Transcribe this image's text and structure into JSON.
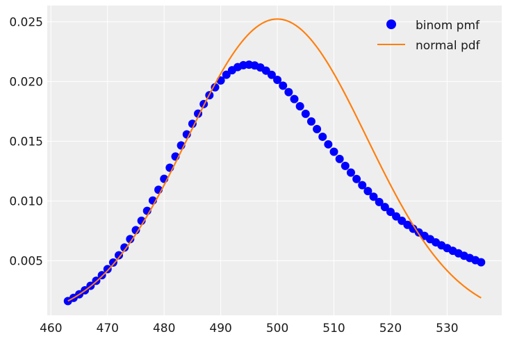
{
  "chart_data": {
    "type": "scatter",
    "title": "",
    "xlabel": "",
    "ylabel": "",
    "xlim": [
      459.35,
      539.65
    ],
    "ylim": [
      0.00043,
      0.02636
    ],
    "xticks": [
      460,
      470,
      480,
      490,
      500,
      510,
      520,
      530
    ],
    "yticks": [
      0.005,
      0.01,
      0.015,
      0.02,
      0.025
    ],
    "ytick_labels": [
      "0.005",
      "0.010",
      "0.015",
      "0.020",
      "0.025"
    ],
    "grid": true,
    "legend": "top-right",
    "background": "#eeeeee",
    "series": [
      {
        "name": "binom pmf",
        "kind": "points",
        "color": "#0000ff",
        "x": [
          463,
          464,
          465,
          466,
          467,
          468,
          469,
          470,
          471,
          472,
          473,
          474,
          475,
          476,
          477,
          478,
          479,
          480,
          481,
          482,
          483,
          484,
          485,
          486,
          487,
          488,
          489,
          490,
          491,
          492,
          493,
          494,
          495,
          496,
          497,
          498,
          499,
          500,
          501,
          502,
          503,
          504,
          505,
          506,
          507,
          508,
          509,
          510,
          511,
          512,
          513,
          514,
          515,
          516,
          517,
          518,
          519,
          520,
          521,
          522,
          523,
          524,
          525,
          526,
          527,
          528,
          529,
          530,
          531,
          532,
          533,
          534,
          535,
          536
        ],
        "y": [
          0.001622,
          0.001888,
          0.002188,
          0.002525,
          0.002902,
          0.003321,
          0.003784,
          0.004293,
          0.00485,
          0.005455,
          0.006109,
          0.00681,
          0.007556,
          0.008346,
          0.009176,
          0.010041,
          0.010936,
          0.011853,
          0.012785,
          0.013722,
          0.014655,
          0.015573,
          0.016464,
          0.017315,
          0.018115,
          0.018852,
          0.019513,
          0.020088,
          0.020569,
          0.020945,
          0.021211,
          0.021368,
          0.021412,
          0.021346,
          0.021176,
          0.02091,
          0.020561,
          0.020138,
          0.019652,
          0.019114,
          0.018536,
          0.017928,
          0.017299,
          0.016659,
          0.016016,
          0.015375,
          0.014743,
          0.014124,
          0.013521,
          0.012938,
          0.012376,
          0.011837,
          0.011321,
          0.010829,
          0.01036,
          0.009914,
          0.009491,
          0.009089,
          0.008708,
          0.008346,
          0.008003,
          0.007678,
          0.00737,
          0.007078,
          0.006801,
          0.006538,
          0.006289,
          0.006053,
          0.005829,
          0.005617,
          0.005415,
          0.005224,
          0.005042,
          0.00487
        ]
      },
      {
        "name": "normal pdf",
        "kind": "line",
        "color": "#ff7f0e",
        "mu": 500,
        "sigma": 15.8114,
        "x_start": 463,
        "x_end": 536
      }
    ]
  },
  "legend": {
    "items": [
      {
        "label": "binom pmf",
        "marker": "circle",
        "color": "#0000ff"
      },
      {
        "label": "normal pdf",
        "marker": "line",
        "color": "#ff7f0e"
      }
    ]
  }
}
